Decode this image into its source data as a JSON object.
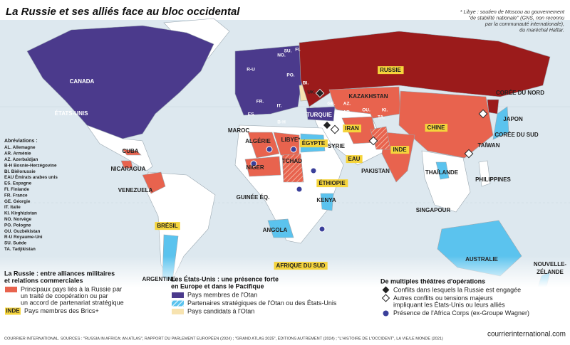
{
  "title": "La Russie et ses alliés face au bloc occidental",
  "note": [
    "* Libye : soutien de Moscou au gouvernement",
    "\"de stabilité nationale\" (GNS, non reconnu",
    "par la communauté internationale),",
    "du maréchal Haftar."
  ],
  "map_labels": [
    {
      "text": "CANADA"
    },
    {
      "text": "ÉTATS-UNIS"
    },
    {
      "text": "CUBA"
    },
    {
      "text": "NICARAGUA"
    },
    {
      "text": "VENEZUELA"
    },
    {
      "text": "BRÉSIL",
      "brics": true
    },
    {
      "text": "ARGENTINE"
    },
    {
      "text": "RUSSIE",
      "brics": true
    },
    {
      "text": "KAZAKHSTAN"
    },
    {
      "text": "CHINE",
      "brics": true
    },
    {
      "text": "CORÉE DU NORD"
    },
    {
      "text": "JAPON"
    },
    {
      "text": "CORÉE DU SUD"
    },
    {
      "text": "TAÏWAN"
    },
    {
      "text": "PHILIPPINES"
    },
    {
      "text": "THAÏLANDE"
    },
    {
      "text": "SINGAPOUR"
    },
    {
      "text": "INDE",
      "brics": true
    },
    {
      "text": "PAKISTAN"
    },
    {
      "text": "IRAN",
      "brics": true
    },
    {
      "text": "EAU",
      "brics": true
    },
    {
      "text": "SYRIE"
    },
    {
      "text": "TURQUIE"
    },
    {
      "text": "ÉGYPTE",
      "brics": true
    },
    {
      "text": "LIBYE*"
    },
    {
      "text": "ALGÉRIE"
    },
    {
      "text": "MAROC"
    },
    {
      "text": "NIGER"
    },
    {
      "text": "TCHAD"
    },
    {
      "text": "ÉTHIOPIE",
      "brics": true
    },
    {
      "text": "KENYA"
    },
    {
      "text": "GUINÉE ÉQ."
    },
    {
      "text": "ANGOLA"
    },
    {
      "text": "AFRIQUE DU SUD",
      "brics": true
    },
    {
      "text": "AUSTRALIE"
    },
    {
      "text": "NOUVELLE-"
    },
    {
      "text": "ZÉLANDE"
    }
  ],
  "small_labels": [
    "NO.",
    "SU.",
    "FI.",
    "R-U",
    "PO.",
    "BI.",
    "UK.",
    "FR.",
    "IT.",
    "ES.",
    "B-H",
    "GE.",
    "AZ.",
    "AR.",
    "OU.",
    "KI.",
    "TA."
  ],
  "abbreviations": {
    "title": "Abréviations :",
    "items": [
      "AL. Allemagne",
      "AR. Arménie",
      "AZ. Azerbaïdjan",
      "B-H Bosnie-Herzégovine",
      "BI. Biélorussie",
      "EAU Émirats arabes unis",
      "ES. Espagne",
      "FI. Finlande",
      "FR. France",
      "GE. Géorgie",
      "IT. Italie",
      "KI. Kirghizistan",
      "NO. Norvège",
      "PO. Pologne",
      "OU. Ouzbékistan",
      "R-U Royaume-Uni",
      "SU. Suède",
      "TA. Tadjikistan"
    ]
  },
  "legend": [
    {
      "title": [
        "La Russie : entre alliances militaires",
        "et relations commerciales"
      ],
      "items": [
        {
          "lines": [
            "Principaux pays liés à la Russie par",
            "un traité de coopération ou par",
            "un accord de partenariat stratégique"
          ]
        },
        {
          "swatch_text": "INDE",
          "lines": [
            "Pays membres des Brics+"
          ]
        }
      ]
    },
    {
      "title": [
        "Les États-Unis : une présence forte",
        "en Europe et dans le Pacifique"
      ],
      "items": [
        {
          "lines": [
            "Pays membres de l'Otan"
          ]
        },
        {
          "lines": [
            "Partenaires stratégiques de l'Otan ou des États-Unis"
          ]
        },
        {
          "lines": [
            "Pays candidats à l'Otan"
          ]
        }
      ]
    },
    {
      "title": [
        "De multiples théâtres d'opérations"
      ],
      "items": [
        {
          "lines": [
            "Conflits dans lesquels la Russie est engagée"
          ]
        },
        {
          "lines": [
            "Autres conflits ou tensions majeurs",
            "impliquant les États-Unis ou leurs alliés"
          ]
        },
        {
          "lines": [
            "Présence de l'Africa Corps (ex-Groupe Wagner)"
          ]
        }
      ]
    }
  ],
  "source": "COURRIER INTERNATIONAL. SOURCES : \"RUSSIA IN AFRICA: AN ATLAS\", RAPPORT DU PARLEMENT EUROPÉEN (2024) ; \"GRAND ATLAS 2025\", ÉDITIONS AUTREMENT (2024) ; \"L'HISTOIRE DE L'OCCIDENT\", LA VIE/LE MONDE (2021)",
  "credit": "courrierinternational.com"
}
